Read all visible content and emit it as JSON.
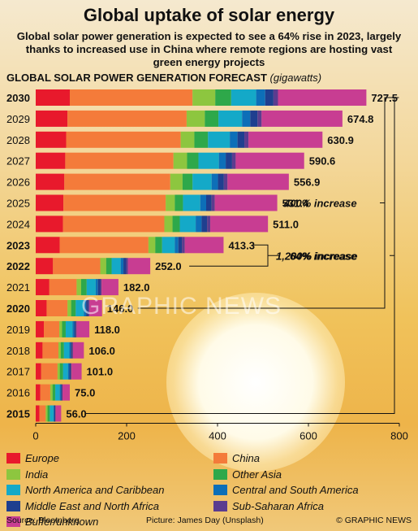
{
  "title": "Global uptake of solar energy",
  "subtitle": "Global solar power generation is expected to see a 64% rise in 2023, largely thanks to increased use in China where remote regions are hosting vast green energy projects",
  "chart_heading": "GLOBAL SOLAR POWER GENERATION FORECAST",
  "chart_heading_unit": "(gigawatts)",
  "colors": {
    "Europe": "#e8192c",
    "China": "#f47b3a",
    "India": "#8dc63f",
    "Other Asia": "#2ea84a",
    "North America and Caribbean": "#14a9c8",
    "Central and South America": "#0d6fb8",
    "Middle East and North Africa": "#1f3f8f",
    "Sub-Saharan Africa": "#5b3c8f",
    "Buffer/unknown": "#c83d92"
  },
  "chart_data": {
    "type": "bar",
    "orientation": "horizontal",
    "stacked": true,
    "title": "GLOBAL SOLAR POWER GENERATION FORECAST (gigawatts)",
    "categories": [
      "2030",
      "2029",
      "2028",
      "2027",
      "2026",
      "2025",
      "2024",
      "2023",
      "2022",
      "2021",
      "2020",
      "2019",
      "2018",
      "2017",
      "2016",
      "2015"
    ],
    "totals": [
      727.5,
      674.8,
      630.9,
      590.6,
      556.9,
      531.4,
      511.0,
      413.3,
      252.0,
      182.0,
      146.0,
      118.0,
      106.0,
      101.0,
      75.0,
      56.0
    ],
    "total_labels": [
      "727.5",
      "674.8",
      "630.9",
      "590.6",
      "556.9",
      "531.4",
      "511.0",
      "413.3",
      "252.0",
      "182.0",
      "146.0",
      "118.0",
      "106.0",
      "101.0",
      "75.0",
      "56.0"
    ],
    "bold_categories": [
      "2030",
      "2023",
      "2022",
      "2020",
      "2015"
    ],
    "series": [
      {
        "name": "Europe",
        "values": [
          75,
          70,
          67,
          65,
          63,
          61,
          60,
          53,
          38,
          30,
          24,
          18,
          15,
          12,
          10,
          8
        ]
      },
      {
        "name": "China",
        "values": [
          270,
          262,
          252,
          238,
          233,
          225,
          223,
          195,
          104,
          60,
          46,
          34,
          35,
          36,
          22,
          14
        ]
      },
      {
        "name": "India",
        "values": [
          50,
          40,
          30,
          30,
          27,
          20,
          18,
          15,
          13,
          10,
          8,
          6,
          5,
          5,
          5,
          4
        ]
      },
      {
        "name": "Other Asia",
        "values": [
          35,
          30,
          30,
          25,
          22,
          18,
          16,
          15,
          12,
          12,
          10,
          8,
          7,
          7,
          6,
          5
        ]
      },
      {
        "name": "North America and Caribbean",
        "values": [
          55,
          52,
          48,
          45,
          42,
          38,
          35,
          28,
          20,
          20,
          18,
          15,
          12,
          11,
          10,
          8
        ]
      },
      {
        "name": "Central and South America",
        "values": [
          20,
          18,
          17,
          15,
          14,
          13,
          13,
          8,
          6,
          5,
          5,
          4,
          3,
          3,
          3,
          2
        ]
      },
      {
        "name": "Middle East and North Africa",
        "values": [
          18,
          16,
          15,
          14,
          13,
          12,
          12,
          8,
          6,
          5,
          4,
          3,
          3,
          3,
          2,
          2
        ]
      },
      {
        "name": "Sub-Saharan Africa",
        "values": [
          10,
          9,
          9,
          8,
          8,
          7,
          7,
          6,
          4,
          3,
          3,
          2,
          2,
          2,
          1,
          1
        ]
      },
      {
        "name": "Buffer/unknown",
        "values": [
          194.5,
          177.8,
          162.9,
          150.6,
          134.9,
          137.4,
          127,
          85.3,
          49,
          37,
          28,
          28,
          24,
          22,
          16,
          12
        ]
      }
    ],
    "xlim": [
      0,
      800
    ],
    "xticks": [
      0,
      200,
      400,
      600,
      800
    ],
    "xtick_labels": [
      "0",
      "200",
      "400",
      "600",
      "800"
    ],
    "grid": false,
    "annotations": [
      {
        "text": "64% increase",
        "from": "2022",
        "to": "2023"
      },
      {
        "text": "400% increase",
        "from": "2020",
        "to": "2030"
      },
      {
        "text": "1,200% increase",
        "from": "2015",
        "to": "2030"
      }
    ],
    "legend_position": "bottom"
  },
  "footer": {
    "source": "Source: Bloomberg",
    "credit": "Picture: James Day (Unsplash)",
    "copyright": "© GRAPHIC NEWS"
  },
  "watermark": "GRAPHIC NEWS"
}
